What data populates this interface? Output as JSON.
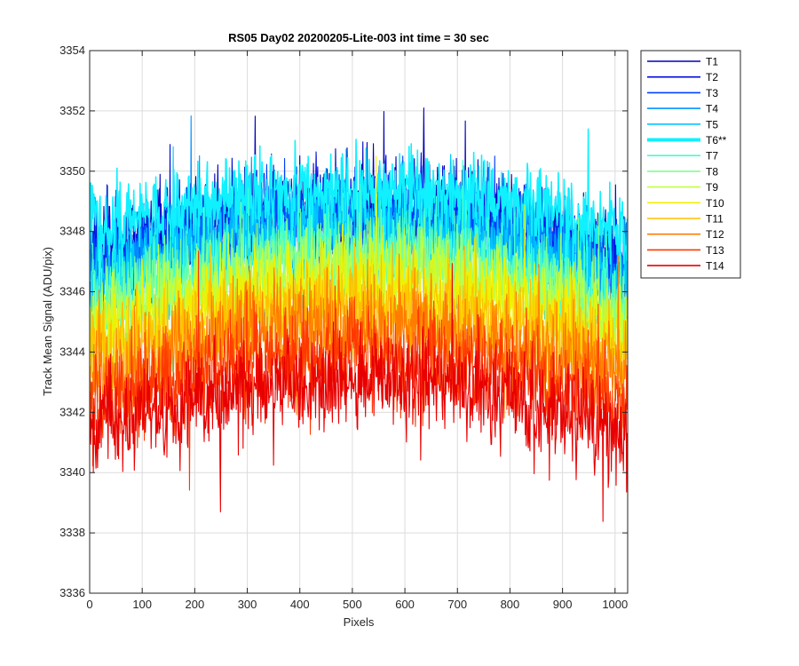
{
  "chart_data": {
    "type": "line",
    "title": "RS05 Day02 20200205-Lite-003 int time = 30 sec",
    "xlabel": "Pixels",
    "ylabel": "Track Mean Signal (ADU/pix)",
    "xlim": [
      0,
      1024
    ],
    "ylim": [
      3336,
      3354
    ],
    "xticks": [
      0,
      100,
      200,
      300,
      400,
      500,
      600,
      700,
      800,
      900,
      1000
    ],
    "yticks": [
      3336,
      3338,
      3340,
      3342,
      3344,
      3346,
      3348,
      3350,
      3352,
      3354
    ],
    "grid": true,
    "legend_position": "outside-right",
    "n_points": 1024,
    "series": [
      {
        "name": "T1",
        "color": "#0000b8",
        "base": 3347.2,
        "arc": 1.8,
        "noise": 1.4,
        "highlight": false
      },
      {
        "name": "T2",
        "color": "#0008e0",
        "base": 3346.9,
        "arc": 1.8,
        "noise": 1.4,
        "highlight": false
      },
      {
        "name": "T3",
        "color": "#0040ff",
        "base": 3346.7,
        "arc": 1.8,
        "noise": 1.4,
        "highlight": false
      },
      {
        "name": "T4",
        "color": "#0090ff",
        "base": 3346.4,
        "arc": 1.8,
        "noise": 1.4,
        "highlight": false
      },
      {
        "name": "T5",
        "color": "#00c8ff",
        "base": 3346.2,
        "arc": 1.8,
        "noise": 1.4,
        "highlight": false
      },
      {
        "name": "T6**",
        "color": "#10f0ff",
        "base": 3348.0,
        "arc": 1.4,
        "noise": 1.2,
        "highlight": true
      },
      {
        "name": "T7",
        "color": "#40ffd0",
        "base": 3345.6,
        "arc": 1.8,
        "noise": 1.4,
        "highlight": false
      },
      {
        "name": "T8",
        "color": "#80ff90",
        "base": 3345.2,
        "arc": 1.8,
        "noise": 1.4,
        "highlight": false
      },
      {
        "name": "T9",
        "color": "#c0ff40",
        "base": 3344.8,
        "arc": 1.8,
        "noise": 1.4,
        "highlight": false
      },
      {
        "name": "T10",
        "color": "#f0f000",
        "base": 3344.3,
        "arc": 1.8,
        "noise": 1.5,
        "highlight": false
      },
      {
        "name": "T11",
        "color": "#ffc000",
        "base": 3343.7,
        "arc": 1.8,
        "noise": 1.5,
        "highlight": false
      },
      {
        "name": "T12",
        "color": "#ff7c00",
        "base": 3343.0,
        "arc": 1.8,
        "noise": 1.5,
        "highlight": false
      },
      {
        "name": "T13",
        "color": "#ff3800",
        "base": 3342.1,
        "arc": 1.8,
        "noise": 1.5,
        "highlight": false
      },
      {
        "name": "T14",
        "color": "#e80000",
        "base": 3341.3,
        "arc": 1.8,
        "noise": 1.5,
        "highlight": false
      }
    ]
  }
}
